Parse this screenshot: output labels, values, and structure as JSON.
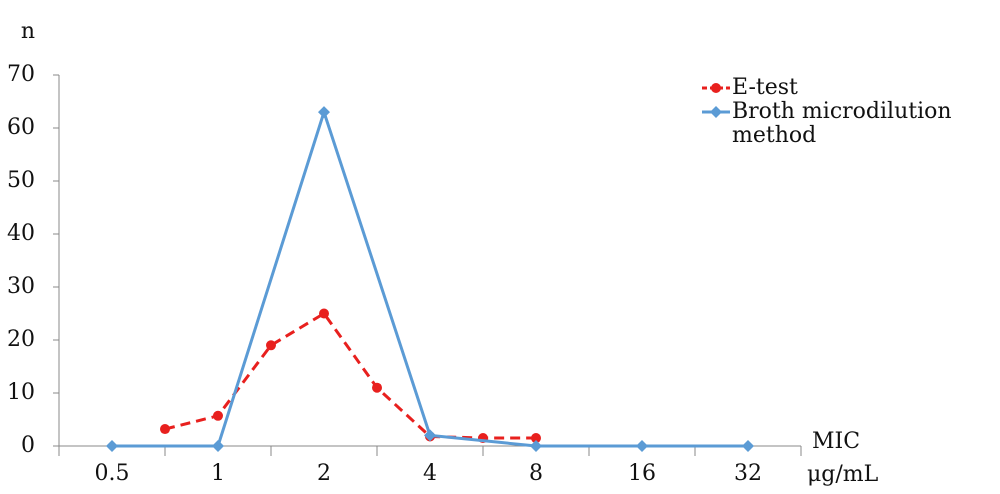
{
  "chart_data": {
    "type": "line",
    "y_label": "n",
    "x_label": [
      "MIC",
      "μg/mL"
    ],
    "xlim": [
      -0.5,
      6.5
    ],
    "xticks": [
      {
        "value": 0,
        "label": "0.5"
      },
      {
        "value": 1,
        "label": "1"
      },
      {
        "value": 2,
        "label": "2"
      },
      {
        "value": 3,
        "label": "4"
      },
      {
        "value": 4,
        "label": "8"
      },
      {
        "value": 5,
        "label": "16"
      },
      {
        "value": 6,
        "label": "32"
      }
    ],
    "ylim": [
      0,
      70
    ],
    "yticks": [
      0,
      10,
      20,
      30,
      40,
      50,
      60,
      70
    ],
    "legend": "top-right",
    "series": [
      {
        "name": "E-test",
        "color": "#e8201e",
        "dashed": true,
        "marker": "circle",
        "x": [
          0.5,
          1,
          1.5,
          2,
          2.5,
          3,
          3.5,
          4
        ],
        "values": [
          3.2,
          5.7,
          19,
          25,
          11,
          1.8,
          1.5,
          1.5
        ]
      },
      {
        "name": "Broth microdilution method",
        "color": "#5b9bd5",
        "dashed": false,
        "marker": "diamond",
        "x": [
          0,
          1,
          2,
          3,
          4,
          5,
          6
        ],
        "values": [
          0,
          0,
          63,
          2,
          0,
          0,
          0
        ]
      }
    ]
  }
}
